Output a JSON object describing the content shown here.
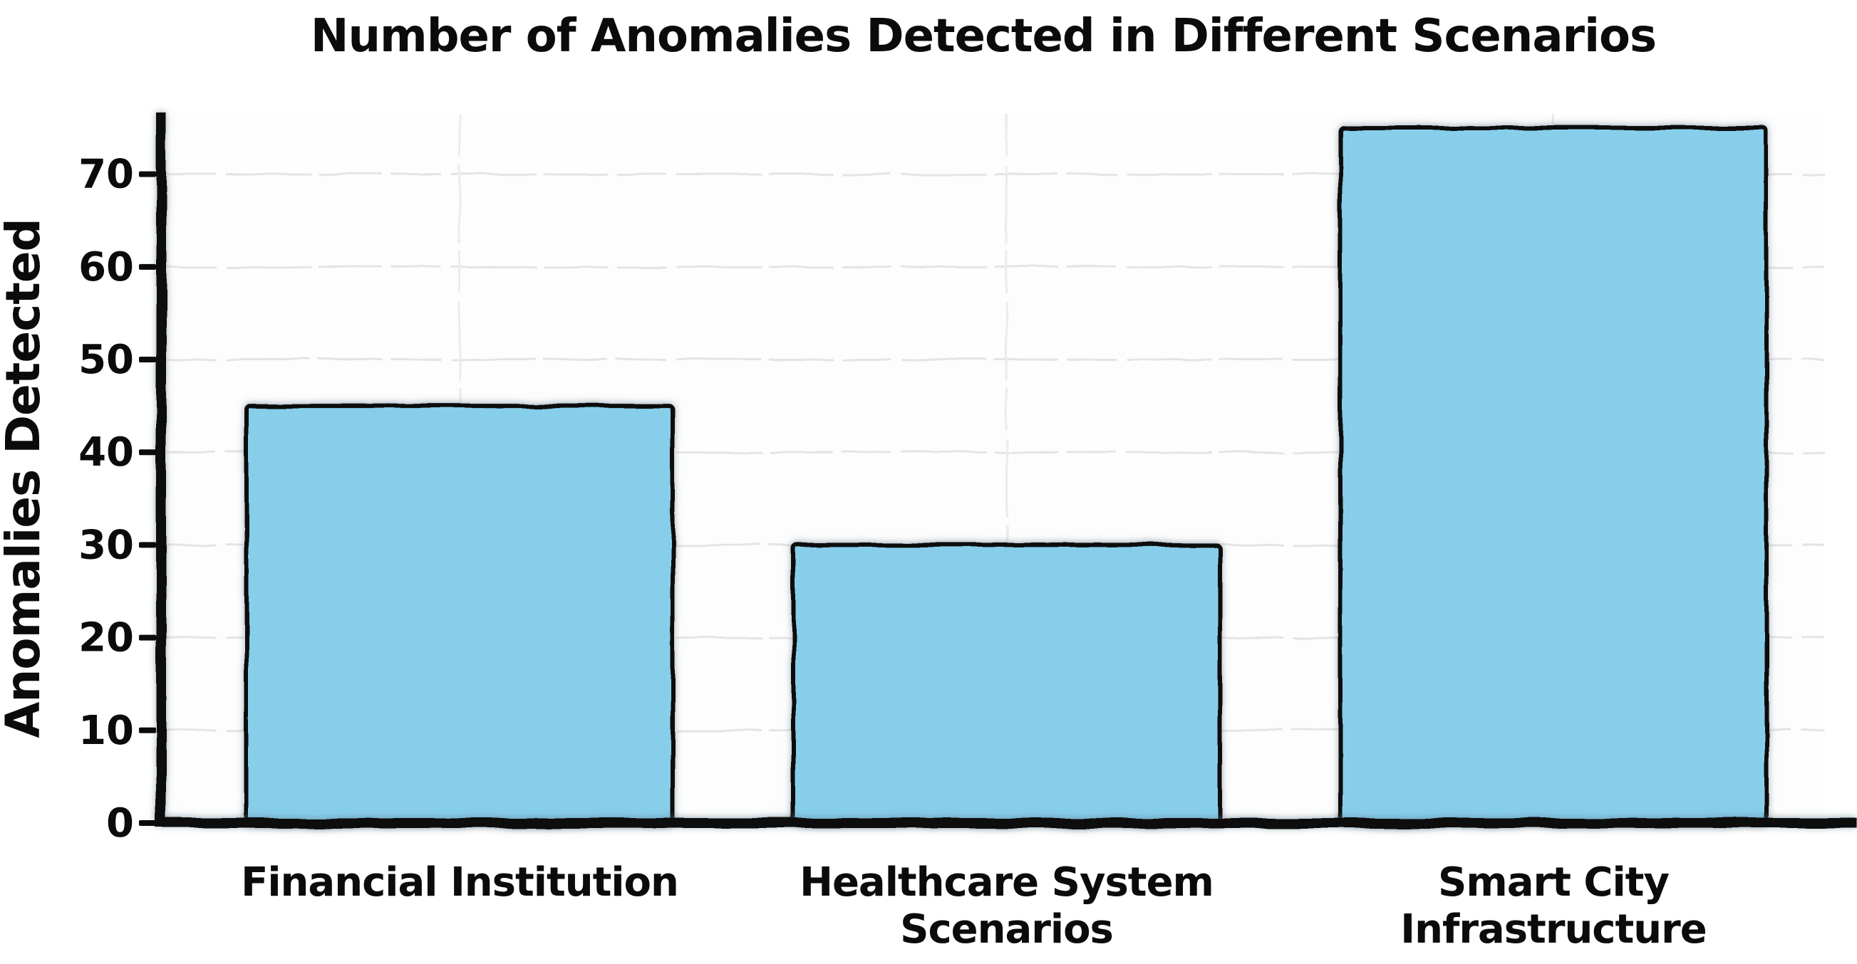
{
  "chart_data": {
    "type": "bar",
    "title": "Number of Anomalies Detected in Different Scenarios",
    "ylabel": "Anomalies Detected",
    "xlabel": "",
    "categories": [
      "Financial Institution",
      "Healthcare System\nScenarios",
      "Smart City\nInfrastructure"
    ],
    "values": [
      45,
      30,
      75
    ],
    "yticks": [
      0,
      10,
      20,
      30,
      40,
      50,
      60,
      70
    ],
    "ylim": [
      0,
      76.5
    ],
    "grid": true,
    "legend": null,
    "style": "hand-drawn-sketch",
    "bar_fill_color": "#87CEEB",
    "bar_edge_color": "#0c0c0c",
    "axis_color": "#0b0b0b",
    "grid_color": "#e6e3e3",
    "background_color": "#ffffff"
  }
}
